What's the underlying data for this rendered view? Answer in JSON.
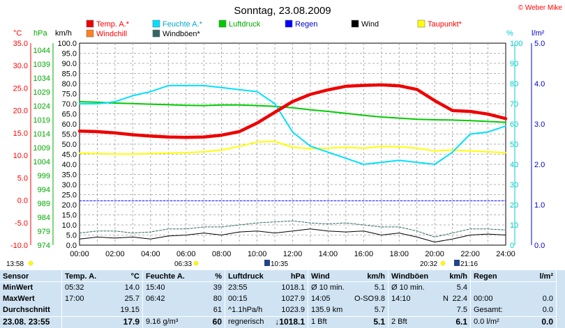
{
  "title": "Sonntag, 23.08.2009",
  "copyright": "© Weber Mike",
  "unit_labels": {
    "temp": "°C",
    "pressure": "hPa",
    "wind": "km/h",
    "humidity": "%",
    "rain": "l/m²"
  },
  "colors": {
    "temp": "#ff0000",
    "windchill": "#ff8000",
    "humidity": "#00ffff",
    "windgust": "#006060",
    "pressure": "#00c000",
    "rain": "#0000ff",
    "wind": "#000000",
    "dewpoint": "#ffff00"
  },
  "legend": [
    {
      "name": "Temp. A.*",
      "color": "#ee0000"
    },
    {
      "name": "Feuchte A.*",
      "color": "#00e0ff"
    },
    {
      "name": "Luftdruck",
      "color": "#00cc00"
    },
    {
      "name": "Regen",
      "color": "#0000ff"
    },
    {
      "name": "Wind",
      "color": "#000000"
    },
    {
      "name": "Taupunkt*",
      "color": "#ffff00"
    },
    {
      "name": "Windchill",
      "color": "#ff8020"
    },
    {
      "name": "Windböen*",
      "color": "#336666"
    }
  ],
  "chart_data": {
    "type": "line",
    "title": "Sonntag, 23.08.2009",
    "x_ticks": [
      "00:00",
      "02:00",
      "04:00",
      "06:00",
      "08:00",
      "10:00",
      "12:00",
      "14:00",
      "16:00",
      "18:00",
      "20:00",
      "22:00",
      "24:00"
    ],
    "axes": {
      "temp": {
        "range": [
          -10,
          35
        ],
        "ticks": [
          "35.0",
          "30.0",
          "25.0",
          "20.0",
          "15.0",
          "10.0",
          "5.0",
          "0.0",
          "-5.0",
          "-10.0"
        ]
      },
      "pressure": {
        "range": [
          974,
          1046.5
        ],
        "ticks": [
          "1044",
          "1039",
          "1034",
          "1029",
          "1024",
          "1019",
          "1014",
          "1009",
          "1004",
          "999",
          "994",
          "989",
          "984",
          "979",
          "974"
        ]
      },
      "wind": {
        "range": [
          0,
          100
        ],
        "ticks": [
          "100.0",
          "95.0",
          "90.0",
          "85.0",
          "80.0",
          "75.0",
          "70.0",
          "65.0",
          "60.0",
          "55.0",
          "50.0",
          "45.0",
          "40.0",
          "35.0",
          "30.0",
          "25.0",
          "20.0",
          "15.0",
          "10.0",
          "5.0",
          "0.0"
        ]
      },
      "humidity": {
        "range": [
          0,
          100
        ],
        "ticks": [
          "100",
          "90",
          "80",
          "70",
          "60",
          "50",
          "40",
          "30",
          "20",
          "10",
          "0"
        ]
      },
      "rain": {
        "range": [
          0,
          5
        ],
        "ticks": [
          "5.0",
          "4.0",
          "3.0",
          "2.0",
          "1.0",
          "0.0"
        ]
      }
    },
    "series": [
      {
        "name": "Temp. A.*",
        "axis": "temp",
        "color": "#ee0000",
        "x": [
          0,
          1,
          2,
          3,
          4,
          5,
          6,
          7,
          8,
          9,
          10,
          11,
          12,
          13,
          14,
          15,
          16,
          17,
          18,
          19,
          20,
          21,
          22,
          23,
          24
        ],
        "values": [
          15.4,
          15.3,
          15.0,
          14.6,
          14.3,
          14.1,
          14.0,
          14.1,
          14.5,
          15.3,
          17.2,
          19.6,
          22.0,
          23.6,
          24.6,
          25.4,
          25.6,
          25.7,
          25.5,
          24.7,
          22.2,
          20.0,
          19.8,
          19.2,
          18.2
        ]
      },
      {
        "name": "Feuchte A.*",
        "axis": "humidity",
        "color": "#00e0ff",
        "x": [
          0,
          1,
          2,
          3,
          4,
          5,
          6,
          7,
          8,
          9,
          10,
          11,
          12,
          13,
          14,
          15,
          16,
          17,
          18,
          19,
          20,
          21,
          22,
          23,
          24
        ],
        "values": [
          70,
          70,
          71,
          74,
          76,
          79,
          79,
          79,
          78,
          77,
          76,
          70,
          56,
          49,
          46,
          43,
          40,
          41,
          42,
          41,
          40,
          46,
          55,
          56,
          59
        ]
      },
      {
        "name": "Luftdruck",
        "axis": "pressure",
        "color": "#00cc00",
        "x": [
          0,
          1,
          2,
          3,
          4,
          5,
          6,
          7,
          8,
          9,
          10,
          11,
          12,
          13,
          14,
          15,
          16,
          17,
          18,
          19,
          20,
          21,
          22,
          23,
          24
        ],
        "values": [
          1025.5,
          1025.3,
          1025.0,
          1024.8,
          1024.6,
          1024.4,
          1024.2,
          1024.1,
          1024.3,
          1024.3,
          1024.1,
          1023.8,
          1023.3,
          1022.6,
          1022.0,
          1021.3,
          1020.6,
          1020.0,
          1019.6,
          1019.2,
          1019.0,
          1018.9,
          1018.7,
          1018.4,
          1018.1
        ]
      },
      {
        "name": "Taupunkt*",
        "axis": "temp",
        "color": "#ffff00",
        "x": [
          0,
          1,
          2,
          3,
          4,
          5,
          6,
          7,
          8,
          9,
          10,
          11,
          12,
          13,
          14,
          15,
          16,
          17,
          18,
          19,
          20,
          21,
          22,
          23,
          24
        ],
        "values": [
          10.5,
          10.4,
          10.3,
          10.3,
          10.4,
          10.5,
          10.6,
          10.8,
          11.2,
          12.0,
          13.0,
          13.1,
          11.8,
          11.5,
          11.6,
          11.8,
          11.6,
          12.0,
          11.9,
          11.6,
          11.0,
          11.2,
          11.0,
          10.8,
          10.6
        ]
      },
      {
        "name": "Wind",
        "axis": "wind",
        "color": "#000000",
        "x": [
          0,
          1,
          2,
          3,
          4,
          5,
          6,
          7,
          8,
          9,
          10,
          11,
          12,
          13,
          14,
          15,
          16,
          17,
          18,
          19,
          20,
          21,
          22,
          23,
          24
        ],
        "values": [
          3,
          4,
          3.5,
          4,
          3,
          4.5,
          5,
          6,
          5,
          6.5,
          7,
          6,
          7,
          8,
          7,
          6.5,
          7,
          5,
          6,
          4,
          1.5,
          3,
          5,
          5.5,
          5
        ]
      },
      {
        "name": "Windböen*",
        "axis": "wind",
        "color": "#336666",
        "x": [
          0,
          1,
          2,
          3,
          4,
          5,
          6,
          7,
          8,
          9,
          10,
          11,
          12,
          13,
          14,
          15,
          16,
          17,
          18,
          19,
          20,
          21,
          22,
          23,
          24
        ],
        "values": [
          6,
          7,
          7,
          6,
          6.5,
          8,
          8,
          9,
          9,
          10,
          11,
          11.5,
          12,
          11,
          10.5,
          11,
          10,
          9,
          9,
          7,
          4,
          6,
          8,
          8,
          7.5
        ]
      },
      {
        "name": "Regen",
        "axis": "rain",
        "color": "#0000ff",
        "x": [
          0,
          24
        ],
        "values": [
          1.1,
          1.1
        ]
      }
    ]
  },
  "sun_marks": {
    "sunrise_left": "13:58",
    "sunrise": "06:33",
    "moonrise": "10:35",
    "sunset": "20:32",
    "moonset": "21:16"
  },
  "stats": {
    "sensor": {
      "header": "Sensor",
      "rows": [
        "MinWert",
        "MaxWert",
        "Durchschnitt"
      ],
      "footer": "23.08. 23:55"
    },
    "temp": {
      "header": "Temp. A.",
      "unit": "°C",
      "min_time": "05:32",
      "min": "14.0",
      "max_time": "17:00",
      "max": "25.7",
      "avg": "19.15",
      "current": "17.9"
    },
    "humidity": {
      "header": "Feuchte A.",
      "unit": "%",
      "min_time": "15:40",
      "min": "39",
      "max_time": "06:42",
      "max": "80",
      "avg": "61",
      "current_extra": "9.16 g/m³",
      "current": "60"
    },
    "pressure": {
      "header": "Luftdruck",
      "unit": "hPa",
      "min_time": "23:55",
      "min": "1018.1",
      "max_time": "00:15",
      "max": "1027.9",
      "trend": "^1.1hPa/h",
      "avg": "1023.9",
      "forecast": "regnerisch",
      "current": "↓1018.1"
    },
    "wind": {
      "header": "Wind",
      "unit": "km/h",
      "r1_label": "Ø 10 min.",
      "r1": "5.1",
      "r2_time": "14:05",
      "r2_dir": "O-SO",
      "r2": "9.8",
      "r3_label": "135.9 km",
      "r3": "5.7",
      "bft": "1 Bft",
      "current": "5.1"
    },
    "gust": {
      "header": "Windböen",
      "unit": "km/h",
      "r1_label": "Ø 10 min.",
      "r1": "5.4",
      "r2_time": "14:10",
      "r2_dir": "N",
      "r2": "22.4",
      "r3": "7.5",
      "bft": "2 Bft",
      "current": "6.1"
    },
    "rain": {
      "header": "Regen",
      "unit": "l/m²",
      "r2_time": "00:00",
      "r2": "0.0",
      "r3_label": "Gesamt:",
      "r3": "0.0",
      "footer_l": "0.0 l/m²",
      "current": "0.0"
    }
  }
}
